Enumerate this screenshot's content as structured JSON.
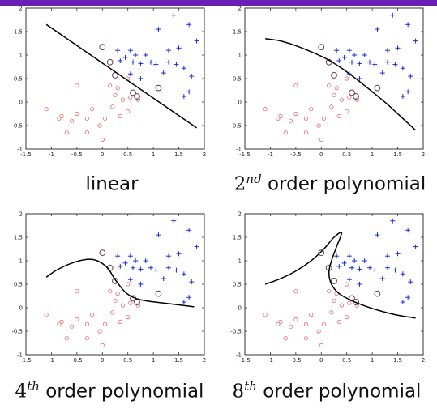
{
  "page": {
    "top_strip_color": "#6a1fb5",
    "curve_color": "#000000",
    "class_a_color": "#1b2fd0",
    "class_b_color": "#e06c6c",
    "highlight_color": "#6b3b57"
  },
  "chart_data": [
    {
      "type": "scatter",
      "caption": {
        "prefix": "",
        "sup": "",
        "text": "linear"
      },
      "xlim": [
        -1.5,
        2
      ],
      "ylim": [
        -1,
        2
      ],
      "xticks": [
        "-1.5",
        "-1",
        "-0.5",
        "0",
        "0.5",
        "1",
        "1.5",
        "2"
      ],
      "yticks": [
        "-1",
        "-0.5",
        "0",
        "0.5",
        "1",
        "1.5",
        "2"
      ],
      "decision_boundary": [
        [
          -1.1,
          1.65
        ],
        [
          1.85,
          -0.55
        ]
      ]
    },
    {
      "type": "scatter",
      "caption": {
        "prefix": "2",
        "sup": "nd",
        "text": " order polynomial"
      },
      "xlim": [
        -1.5,
        2
      ],
      "ylim": [
        -1,
        2
      ],
      "xticks": [
        "-1.5",
        "-1",
        "-0.5",
        "0",
        "0.5",
        "1",
        "1.5",
        "2"
      ],
      "yticks": [
        "-1",
        "-0.5",
        "0",
        "0.5",
        "1",
        "1.5",
        "2"
      ],
      "decision_boundary": [
        [
          -1.1,
          1.35
        ],
        [
          -0.8,
          1.3
        ],
        [
          -0.5,
          1.2
        ],
        [
          -0.2,
          1.07
        ],
        [
          0.1,
          0.92
        ],
        [
          0.4,
          0.72
        ],
        [
          0.7,
          0.48
        ],
        [
          1.0,
          0.22
        ],
        [
          1.3,
          -0.05
        ],
        [
          1.6,
          -0.35
        ],
        [
          1.85,
          -0.6
        ]
      ]
    },
    {
      "type": "scatter",
      "caption": {
        "prefix": "4",
        "sup": "th",
        "text": " order polynomial"
      },
      "xlim": [
        -1.5,
        2
      ],
      "ylim": [
        -1,
        2
      ],
      "xticks": [
        "-1.5",
        "-1",
        "-0.5",
        "0",
        "0.5",
        "1",
        "1.5",
        "2"
      ],
      "yticks": [
        "-1",
        "-0.5",
        "0",
        "0.5",
        "1",
        "1.5",
        "2"
      ],
      "decision_boundary": [
        [
          -1.1,
          0.65
        ],
        [
          -0.9,
          0.8
        ],
        [
          -0.6,
          0.95
        ],
        [
          -0.3,
          1.03
        ],
        [
          -0.1,
          1.0
        ],
        [
          0.1,
          0.85
        ],
        [
          0.25,
          0.6
        ],
        [
          0.45,
          0.33
        ],
        [
          0.65,
          0.2
        ],
        [
          0.9,
          0.14
        ],
        [
          1.2,
          0.1
        ],
        [
          1.5,
          0.06
        ],
        [
          1.8,
          0.02
        ]
      ]
    },
    {
      "type": "scatter",
      "caption": {
        "prefix": "8",
        "sup": "th",
        "text": " order polynomial"
      },
      "xlim": [
        -1.5,
        2
      ],
      "ylim": [
        -1,
        2
      ],
      "xticks": [
        "-1.5",
        "-1",
        "-0.5",
        "0",
        "0.5",
        "1",
        "1.5",
        "2"
      ],
      "yticks": [
        "-1",
        "-0.5",
        "0",
        "0.5",
        "1",
        "1.5",
        "2"
      ],
      "decision_boundary": [
        [
          -1.1,
          0.5
        ],
        [
          -0.8,
          0.62
        ],
        [
          -0.5,
          0.78
        ],
        [
          -0.2,
          1.0
        ],
        [
          0.05,
          1.25
        ],
        [
          0.25,
          1.5
        ],
        [
          0.4,
          1.6
        ],
        [
          0.3,
          1.3
        ],
        [
          0.2,
          1.0
        ],
        [
          0.15,
          0.75
        ],
        [
          0.2,
          0.5
        ],
        [
          0.35,
          0.3
        ],
        [
          0.6,
          0.15
        ],
        [
          0.9,
          0.02
        ],
        [
          1.2,
          -0.08
        ],
        [
          1.5,
          -0.16
        ],
        [
          1.85,
          -0.22
        ]
      ]
    }
  ],
  "points": {
    "class_a": [
      [
        1.4,
        1.85
      ],
      [
        1.1,
        1.55
      ],
      [
        1.7,
        1.65
      ],
      [
        1.85,
        1.3
      ],
      [
        0.3,
        1.1
      ],
      [
        0.55,
        1.1
      ],
      [
        0.65,
        1.0
      ],
      [
        0.45,
        0.95
      ],
      [
        0.85,
        1.0
      ],
      [
        1.3,
        1.1
      ],
      [
        1.5,
        1.15
      ],
      [
        0.35,
        0.88
      ],
      [
        0.6,
        0.85
      ],
      [
        0.75,
        0.82
      ],
      [
        0.95,
        0.85
      ],
      [
        1.05,
        0.8
      ],
      [
        1.3,
        0.85
      ],
      [
        1.45,
        0.8
      ],
      [
        1.6,
        0.72
      ],
      [
        1.2,
        0.62
      ],
      [
        1.75,
        0.55
      ],
      [
        1.7,
        0.22
      ],
      [
        1.6,
        0.12
      ],
      [
        0.75,
        0.5
      ],
      [
        0.55,
        0.6
      ]
    ],
    "class_b": [
      [
        -1.1,
        -0.15
      ],
      [
        -0.8,
        -0.3
      ],
      [
        -0.6,
        -0.4
      ],
      [
        -0.5,
        -0.25
      ],
      [
        -0.3,
        -0.35
      ],
      [
        -0.2,
        -0.15
      ],
      [
        -0.05,
        -0.5
      ],
      [
        0.0,
        -0.8
      ],
      [
        -0.3,
        -0.65
      ],
      [
        0.05,
        -0.35
      ],
      [
        0.2,
        -0.1
      ],
      [
        0.35,
        -0.3
      ],
      [
        0.5,
        -0.2
      ],
      [
        -0.5,
        0.35
      ],
      [
        -0.7,
        -0.65
      ],
      [
        -0.85,
        -0.35
      ],
      [
        0.15,
        0.35
      ],
      [
        0.3,
        0.3
      ],
      [
        0.25,
        0.15
      ],
      [
        0.4,
        0.05
      ],
      [
        0.55,
        0.1
      ],
      [
        0.7,
        0.05
      ],
      [
        0.5,
        0.5
      ]
    ],
    "highlighted": [
      [
        0.0,
        1.17
      ],
      [
        0.25,
        0.57
      ],
      [
        0.6,
        0.2
      ],
      [
        0.68,
        0.12
      ],
      [
        1.1,
        0.3
      ],
      [
        0.15,
        0.85
      ]
    ]
  }
}
